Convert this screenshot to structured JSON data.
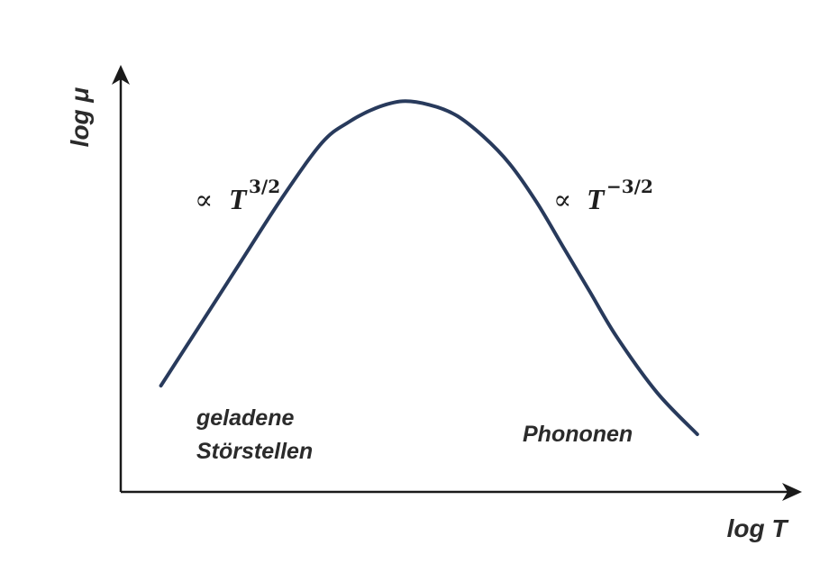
{
  "chart_data": {
    "type": "line",
    "xlabel": "log T",
    "ylabel": "log μ",
    "xlim": [
      0,
      1
    ],
    "ylim": [
      0,
      1
    ],
    "grid": false,
    "series": [
      {
        "x": [
          0.06,
          0.12,
          0.18,
          0.24,
          0.3,
          0.34,
          0.38,
          0.42,
          0.46,
          0.5,
          0.54,
          0.58,
          0.62,
          0.66,
          0.7,
          0.74,
          0.8,
          0.86
        ],
        "y": [
          0.14,
          0.32,
          0.5,
          0.68,
          0.84,
          0.9,
          0.94,
          0.96,
          0.95,
          0.92,
          0.86,
          0.78,
          0.67,
          0.54,
          0.41,
          0.28,
          0.12,
          0.0
        ],
        "color": "#283a5c"
      }
    ],
    "annotations": [
      {
        "proportional": "∝",
        "base": "T",
        "exponent": "3/2",
        "description": "rising slope"
      },
      {
        "proportional": "∝",
        "base": "T",
        "exponent": "−3/2",
        "description": "falling slope"
      }
    ],
    "region_labels": {
      "left_line1": "geladene",
      "left_line2": "Störstellen",
      "right": "Phononen"
    }
  }
}
